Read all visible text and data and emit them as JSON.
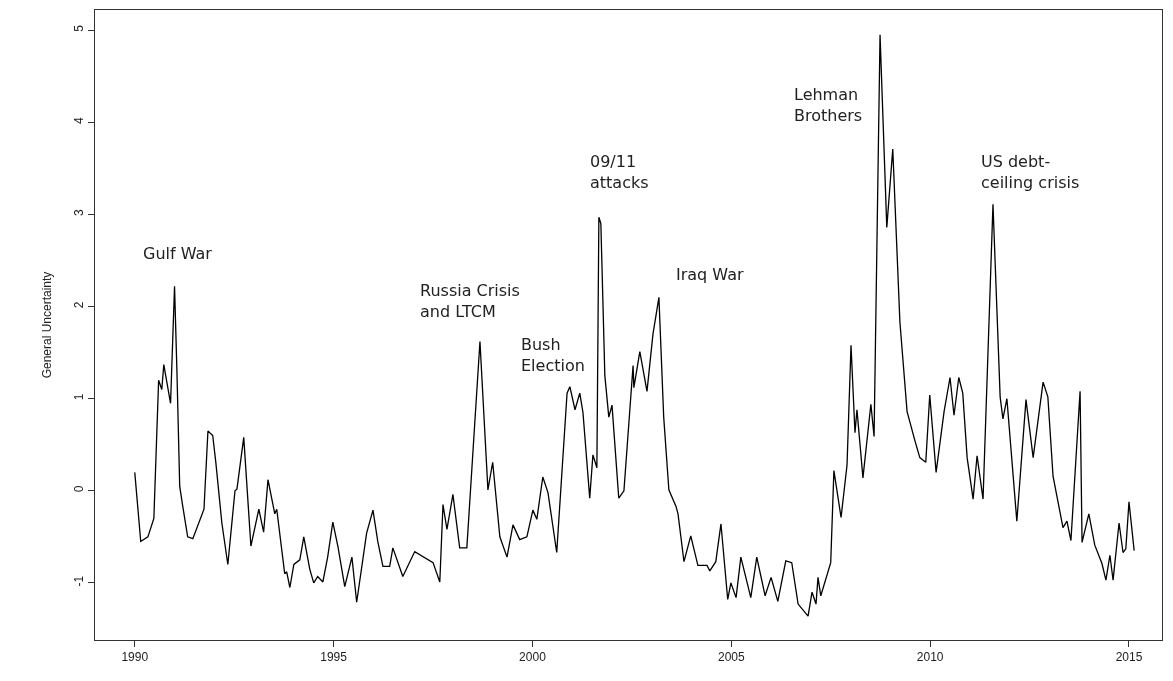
{
  "chart_data": {
    "type": "line",
    "ylabel": "General Uncertainty",
    "x": [
      1990.0,
      1990.15,
      1990.33,
      1990.48,
      1990.6,
      1990.68,
      1990.73,
      1990.9,
      1991.0,
      1991.06,
      1991.13,
      1991.2,
      1991.33,
      1991.46,
      1991.74,
      1991.84,
      1991.96,
      1992.04,
      1992.19,
      1992.34,
      1992.52,
      1992.57,
      1992.74,
      1992.92,
      1993.12,
      1993.24,
      1993.35,
      1993.52,
      1993.57,
      1993.77,
      1993.82,
      1993.9,
      1994.0,
      1994.15,
      1994.25,
      1994.4,
      1994.5,
      1994.6,
      1994.73,
      1994.85,
      1994.98,
      1995.11,
      1995.28,
      1995.46,
      1995.58,
      1995.83,
      1995.99,
      1996.11,
      1996.24,
      1996.41,
      1996.49,
      1996.74,
      1997.04,
      1997.5,
      1997.67,
      1997.75,
      1997.85,
      1998.0,
      1998.17,
      1998.35,
      1998.68,
      1998.88,
      1999.0,
      1999.18,
      1999.36,
      1999.51,
      1999.68,
      1999.86,
      2000.01,
      2000.11,
      2000.26,
      2000.39,
      2000.61,
      2000.87,
      2000.94,
      2001.07,
      2001.19,
      2001.27,
      2001.44,
      2001.52,
      2001.62,
      2001.67,
      2001.72,
      2001.82,
      2001.92,
      2002.0,
      2002.17,
      2002.3,
      2002.53,
      2002.55,
      2002.7,
      2002.88,
      2003.03,
      2003.18,
      2003.3,
      2003.43,
      2003.61,
      2003.66,
      2003.81,
      2003.98,
      2004.16,
      2004.39,
      2004.46,
      2004.61,
      2004.74,
      2004.91,
      2004.99,
      2005.12,
      2005.24,
      2005.49,
      2005.64,
      2005.85,
      2006.0,
      2006.17,
      2006.37,
      2006.52,
      2006.68,
      2006.93,
      2007.03,
      2007.13,
      2007.18,
      2007.25,
      2007.5,
      2007.58,
      2007.76,
      2007.91,
      2008.01,
      2008.11,
      2008.16,
      2008.31,
      2008.51,
      2008.59,
      2008.74,
      2008.91,
      2009.06,
      2009.24,
      2009.42,
      2009.62,
      2009.74,
      2009.89,
      2009.99,
      2010.15,
      2010.35,
      2010.5,
      2010.6,
      2010.72,
      2010.82,
      2010.93,
      2011.08,
      2011.18,
      2011.33,
      2011.58,
      2011.76,
      2011.83,
      2011.93,
      2012.18,
      2012.41,
      2012.59,
      2012.84,
      2012.96,
      2013.09,
      2013.34,
      2013.44,
      2013.54,
      2013.77,
      2013.82,
      2013.99,
      2014.14,
      2014.32,
      2014.42,
      2014.52,
      2014.6,
      2014.75,
      2014.85,
      2014.92,
      2015.0,
      2015.13
    ],
    "series": [
      {
        "color": "#000000",
        "values": [
          0.2,
          -0.55,
          -0.5,
          -0.3,
          1.2,
          1.1,
          1.37,
          0.95,
          2.22,
          1.3,
          0.05,
          -0.15,
          -0.5,
          -0.52,
          -0.2,
          0.65,
          0.6,
          0.3,
          -0.35,
          -0.8,
          0.0,
          0.02,
          0.58,
          -0.6,
          -0.2,
          -0.45,
          0.12,
          -0.25,
          -0.2,
          -0.9,
          -0.88,
          -1.05,
          -0.8,
          -0.75,
          -0.5,
          -0.85,
          -1.0,
          -0.93,
          -0.99,
          -0.72,
          -0.34,
          -0.61,
          -1.04,
          -0.72,
          -1.21,
          -0.46,
          -0.21,
          -0.55,
          -0.82,
          -0.82,
          -0.62,
          -0.93,
          -0.66,
          -0.78,
          -0.99,
          -0.15,
          -0.42,
          -0.04,
          -0.62,
          -0.62,
          1.62,
          0.01,
          0.31,
          -0.5,
          -0.72,
          -0.37,
          -0.53,
          -0.5,
          -0.21,
          -0.31,
          0.15,
          -0.02,
          -0.67,
          1.06,
          1.13,
          0.88,
          1.06,
          0.85,
          -0.08,
          0.39,
          0.25,
          2.97,
          2.9,
          1.25,
          0.8,
          0.93,
          -0.08,
          0.0,
          1.36,
          1.12,
          1.51,
          1.08,
          1.7,
          2.1,
          0.8,
          0.01,
          -0.17,
          -0.25,
          -0.77,
          -0.49,
          -0.81,
          -0.81,
          -0.87,
          -0.77,
          -0.36,
          -1.18,
          -1.0,
          -1.16,
          -0.72,
          -1.16,
          -0.72,
          -1.14,
          -0.94,
          -1.2,
          -0.76,
          -0.78,
          -1.23,
          -1.36,
          -1.1,
          -1.23,
          -0.94,
          -1.14,
          -0.78,
          0.22,
          -0.29,
          0.28,
          1.58,
          0.63,
          0.88,
          0.14,
          0.94,
          0.59,
          4.95,
          2.86,
          3.71,
          1.83,
          0.86,
          0.54,
          0.36,
          0.31,
          1.04,
          0.2,
          0.86,
          1.23,
          0.82,
          1.23,
          1.06,
          0.36,
          -0.09,
          0.38,
          -0.09,
          3.11,
          1.02,
          0.78,
          1.0,
          -0.33,
          0.99,
          0.36,
          1.18,
          1.02,
          0.16,
          -0.4,
          -0.33,
          -0.54,
          1.08,
          -0.56,
          -0.25,
          -0.59,
          -0.79,
          -0.97,
          -0.7,
          -0.97,
          -0.35,
          -0.67,
          -0.63,
          -0.12,
          -0.65
        ]
      }
    ],
    "xlim": [
      1989.0,
      2015.83
    ],
    "ylim": [
      -1.62,
      5.22
    ],
    "xticks": [
      1990,
      1995,
      2000,
      2005,
      2010,
      2015
    ],
    "yticks": [
      -1,
      0,
      1,
      2,
      3,
      4,
      5
    ],
    "marker": "none",
    "line_style": "solid",
    "annotations": [
      {
        "text": "Gulf War",
        "x": 1991.0,
        "y": 2.22
      },
      {
        "text": "Russia Crisis\nand LTCM",
        "x": 1998.68,
        "y": 1.62
      },
      {
        "text": "Bush\nElection",
        "x": 2000.94,
        "y": 1.13
      },
      {
        "text": "09/11\nattacks",
        "x": 2001.67,
        "y": 2.97
      },
      {
        "text": "Iraq War",
        "x": 2003.18,
        "y": 2.1
      },
      "Lehman\nBrothers",
      {
        "text": "US debt-\nceiling crisis",
        "x": 2011.58,
        "y": 3.11
      }
    ]
  }
}
